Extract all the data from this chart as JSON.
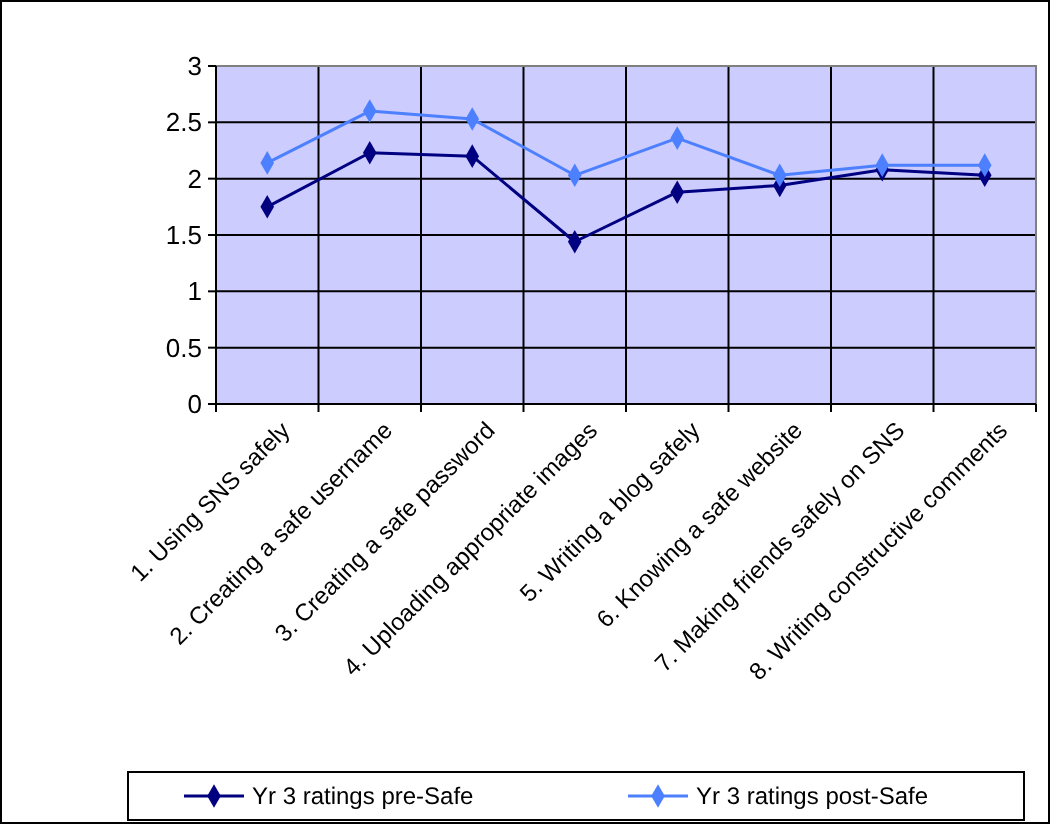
{
  "chart_data": {
    "type": "line",
    "categories": [
      "1. Using SNS safely",
      "2. Creating a safe username",
      "3. Creating a safe password",
      "4. Uploading appropriate images",
      "5. Writing a blog safely",
      "6. Knowing a safe website",
      "7. Making friends safely on SNS",
      "8. Writing constructive comments"
    ],
    "series": [
      {
        "name": "Yr 3 ratings pre-Safe",
        "color": "#000080",
        "values": [
          1.75,
          2.23,
          2.2,
          1.44,
          1.88,
          1.94,
          2.08,
          2.03
        ]
      },
      {
        "name": "Yr 3 ratings post-Safe",
        "color": "#4d80ff",
        "values": [
          2.14,
          2.6,
          2.53,
          2.03,
          2.36,
          2.03,
          2.12,
          2.12
        ]
      }
    ],
    "ylim": [
      0,
      3
    ],
    "yticks": [
      0,
      0.5,
      1,
      1.5,
      2,
      2.5,
      3
    ],
    "grid": true,
    "legend": "bottom",
    "marker": "diamond",
    "line_style": "solid"
  }
}
